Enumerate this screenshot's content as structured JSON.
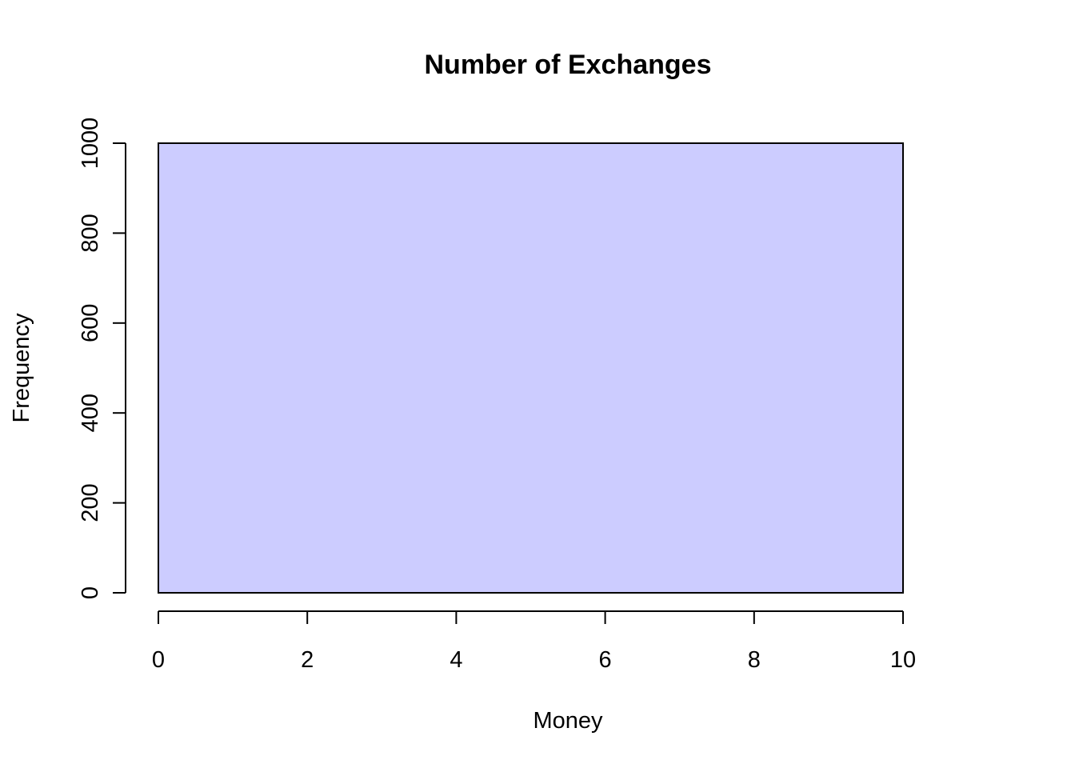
{
  "chart_data": {
    "type": "bar",
    "title": "Number of Exchanges",
    "xlabel": "Money",
    "ylabel": "Frequency",
    "xlim": [
      0,
      10
    ],
    "ylim": [
      0,
      1000
    ],
    "x_ticks": [
      0,
      2,
      4,
      6,
      8,
      10
    ],
    "y_ticks": [
      0,
      200,
      400,
      600,
      800,
      1000
    ],
    "bins": [
      {
        "start": 0,
        "end": 10,
        "value": 1000
      }
    ],
    "bar_color": "#ccccff",
    "border_color": "#000000",
    "grid": false,
    "legend": "none"
  }
}
